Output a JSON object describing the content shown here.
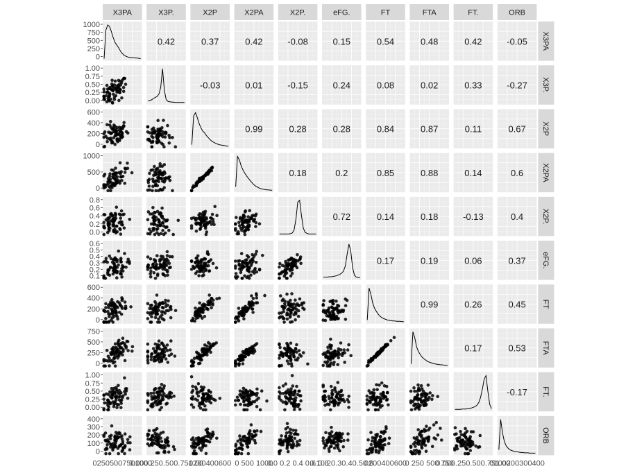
{
  "chart_data": {
    "type": "scatter",
    "subtype": "pairs-matrix",
    "variables": [
      "X3PA",
      "X3P.",
      "X2P",
      "X2PA",
      "X2P.",
      "eFG.",
      "FT",
      "FTA",
      "FT.",
      "ORB"
    ],
    "ranges": [
      [
        0,
        1100
      ],
      [
        0,
        1.0
      ],
      [
        0,
        700
      ],
      [
        0,
        1400
      ],
      [
        0,
        0.85
      ],
      [
        0.1,
        0.7
      ],
      [
        0,
        700
      ],
      [
        0,
        800
      ],
      [
        0,
        1.0
      ],
      [
        0,
        420
      ]
    ],
    "y_ticks": [
      [
        "1000",
        "750",
        "500",
        "250",
        "0"
      ],
      [
        "1.00",
        "0.75",
        "0.50",
        "0.25",
        "0.00"
      ],
      [
        "600",
        "400",
        "200",
        "0"
      ],
      [
        "1000",
        "500",
        "0"
      ],
      [
        "0.8",
        "0.6",
        "0.4",
        "0.2",
        "0.0"
      ],
      [
        "0.6",
        "0.5",
        "0.4",
        "0.3",
        "0.2",
        "0.1"
      ],
      [
        "600",
        "400",
        "200",
        "0"
      ],
      [
        "750",
        "500",
        "250",
        "0"
      ],
      [
        "1.00",
        "0.75",
        "0.50",
        "0.25",
        "0.00"
      ],
      [
        "400",
        "300",
        "200",
        "100",
        "0"
      ]
    ],
    "x_tick_labels": [
      "02505007501000",
      "0.000.250.500.751.00",
      "0200400600",
      "0 500 1000",
      "0.0 0.2 0.4 0.6 0.8",
      "0.10.20.30.40.50.6",
      "0200400600",
      "0 250 500 750",
      "0.000.250.500.751.00",
      "0100200300400"
    ],
    "correlations": [
      [
        null,
        "0.42",
        "0.37",
        "0.42",
        "-0.08",
        "0.15",
        "0.54",
        "0.48",
        "0.42",
        "-0.05"
      ],
      [
        null,
        null,
        "-0.03",
        "0.01",
        "-0.15",
        "0.24",
        "0.08",
        "0.02",
        "0.33",
        "-0.27"
      ],
      [
        null,
        null,
        null,
        "0.99",
        "0.28",
        "0.28",
        "0.84",
        "0.87",
        "0.11",
        "0.67"
      ],
      [
        null,
        null,
        null,
        null,
        "0.18",
        "0.2",
        "0.85",
        "0.88",
        "0.14",
        "0.6"
      ],
      [
        null,
        null,
        null,
        null,
        null,
        "0.72",
        "0.14",
        "0.18",
        "-0.13",
        "0.4"
      ],
      [
        null,
        null,
        null,
        null,
        null,
        null,
        "0.17",
        "0.19",
        "0.06",
        "0.37"
      ],
      [
        null,
        null,
        null,
        null,
        null,
        null,
        null,
        "0.99",
        "0.26",
        "0.45"
      ],
      [
        null,
        null,
        null,
        null,
        null,
        null,
        null,
        null,
        "0.17",
        "0.53"
      ],
      [
        null,
        null,
        null,
        null,
        null,
        null,
        null,
        null,
        null,
        "-0.17"
      ],
      [
        null,
        null,
        null,
        null,
        null,
        null,
        null,
        null,
        null,
        null
      ]
    ],
    "density_curves": [
      [
        0.0,
        0.85,
        1.0,
        0.95,
        0.8,
        0.62,
        0.48,
        0.4,
        0.32,
        0.22,
        0.15,
        0.1,
        0.07,
        0.05,
        0.04,
        0.03,
        0.03,
        0.02,
        0.02,
        0.01,
        0.0
      ],
      [
        0.05,
        0.06,
        0.08,
        0.12,
        0.15,
        0.18,
        0.25,
        0.45,
        1.0,
        0.35,
        0.08,
        0.03,
        0.02,
        0.01,
        0.01,
        0.0,
        0.0,
        0.0,
        0.0,
        0.0,
        0.0
      ],
      [
        0.05,
        0.9,
        1.0,
        0.85,
        0.68,
        0.55,
        0.45,
        0.4,
        0.32,
        0.26,
        0.2,
        0.15,
        0.12,
        0.09,
        0.07,
        0.05,
        0.04,
        0.03,
        0.02,
        0.01,
        0.0
      ],
      [
        0.1,
        1.0,
        0.9,
        0.72,
        0.6,
        0.5,
        0.42,
        0.35,
        0.28,
        0.22,
        0.16,
        0.12,
        0.09,
        0.06,
        0.04,
        0.03,
        0.02,
        0.01,
        0.01,
        0.0,
        0.0
      ],
      [
        0.0,
        0.0,
        0.0,
        0.0,
        0.0,
        0.0,
        0.01,
        0.03,
        0.12,
        0.45,
        0.95,
        1.0,
        0.55,
        0.18,
        0.05,
        0.02,
        0.0,
        0.0,
        0.0,
        0.0,
        0.0
      ],
      [
        0.02,
        0.02,
        0.02,
        0.03,
        0.03,
        0.04,
        0.05,
        0.06,
        0.08,
        0.1,
        0.14,
        0.2,
        0.35,
        0.7,
        1.0,
        0.8,
        0.3,
        0.08,
        0.02,
        0.01,
        0.0
      ],
      [
        0.05,
        1.0,
        0.8,
        0.55,
        0.4,
        0.3,
        0.22,
        0.16,
        0.12,
        0.09,
        0.07,
        0.05,
        0.04,
        0.03,
        0.02,
        0.02,
        0.01,
        0.01,
        0.01,
        0.0,
        0.0
      ],
      [
        0.05,
        1.0,
        0.82,
        0.55,
        0.42,
        0.32,
        0.25,
        0.2,
        0.16,
        0.12,
        0.1,
        0.08,
        0.06,
        0.05,
        0.04,
        0.03,
        0.02,
        0.02,
        0.01,
        0.01,
        0.0
      ],
      [
        0.0,
        0.0,
        0.0,
        0.0,
        0.01,
        0.01,
        0.01,
        0.02,
        0.03,
        0.04,
        0.06,
        0.08,
        0.12,
        0.2,
        0.35,
        0.6,
        0.9,
        1.0,
        0.55,
        0.15,
        0.02
      ],
      [
        0.1,
        1.0,
        0.6,
        0.35,
        0.22,
        0.15,
        0.1,
        0.08,
        0.06,
        0.05,
        0.04,
        0.03,
        0.02,
        0.02,
        0.01,
        0.01,
        0.01,
        0.0,
        0.0,
        0.0,
        0.0
      ]
    ]
  }
}
